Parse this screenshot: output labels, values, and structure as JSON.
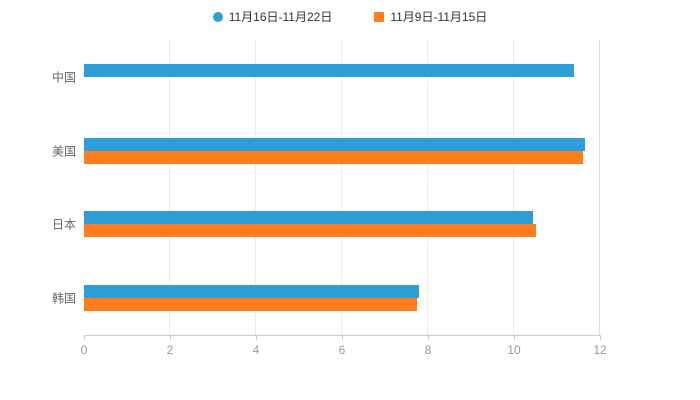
{
  "legend": {
    "items": [
      {
        "label": "11月16日-11月22日",
        "color": "#2E9FD6",
        "shape": "circle"
      },
      {
        "label": "11月9日-11月15日",
        "color": "#FF7D1F",
        "shape": "square"
      }
    ]
  },
  "chart_data": {
    "type": "bar",
    "orientation": "horizontal",
    "title": "",
    "xlabel": "",
    "ylabel": "",
    "categories": [
      "中国",
      "美国",
      "日本",
      "韩国"
    ],
    "series": [
      {
        "name": "11月16日-11月22日",
        "color": "#2E9FD6",
        "values": [
          11.4,
          11.65,
          10.45,
          7.8
        ]
      },
      {
        "name": "11月9日-11月15日",
        "color": "#FF7D1F",
        "values": [
          0,
          11.6,
          10.5,
          7.75
        ]
      }
    ],
    "xlim": [
      0,
      12
    ],
    "xticks": [
      0,
      2,
      4,
      6,
      8,
      10,
      12
    ],
    "grid": true,
    "legend_position": "top"
  }
}
